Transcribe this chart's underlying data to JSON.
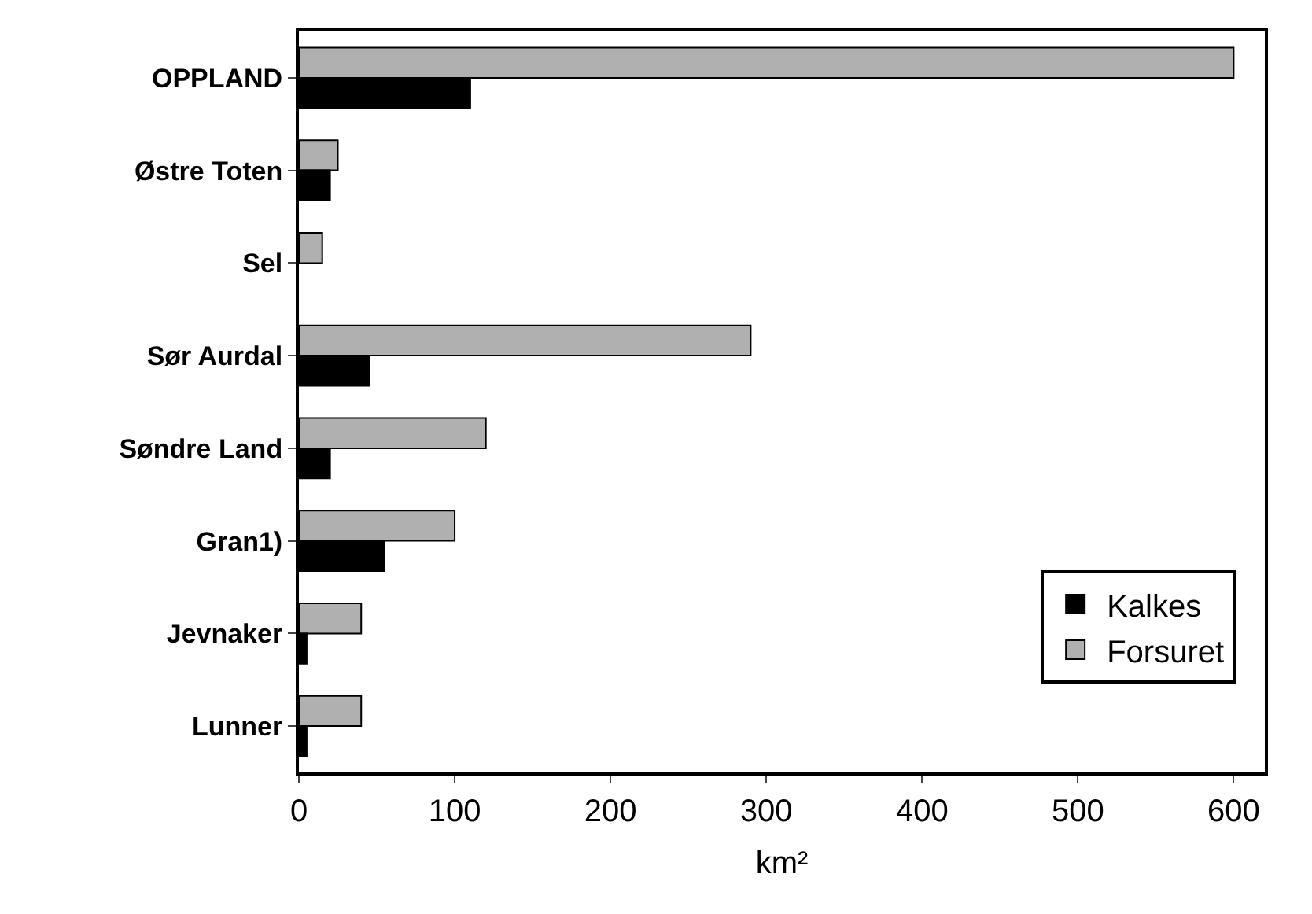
{
  "chart_data": {
    "type": "bar",
    "orientation": "horizontal",
    "xlabel": "km²",
    "categories": [
      "OPPLAND",
      "Østre Toten",
      "Sel",
      "Sør Aurdal",
      "Søndre Land",
      "Gran1)",
      "Jevnaker",
      "Lunner"
    ],
    "series": [
      {
        "name": "Kalkes",
        "color": "#000000",
        "values": [
          110,
          20,
          null,
          45,
          20,
          55,
          5,
          5
        ]
      },
      {
        "name": "Forsuret",
        "color": "#b0b0b0",
        "values": [
          600,
          25,
          15,
          290,
          120,
          100,
          40,
          40
        ]
      }
    ],
    "xlim": [
      0,
      620
    ],
    "xticks": [
      0,
      100,
      200,
      300,
      400,
      500,
      600
    ],
    "grid": false,
    "legend": "bottom right"
  }
}
